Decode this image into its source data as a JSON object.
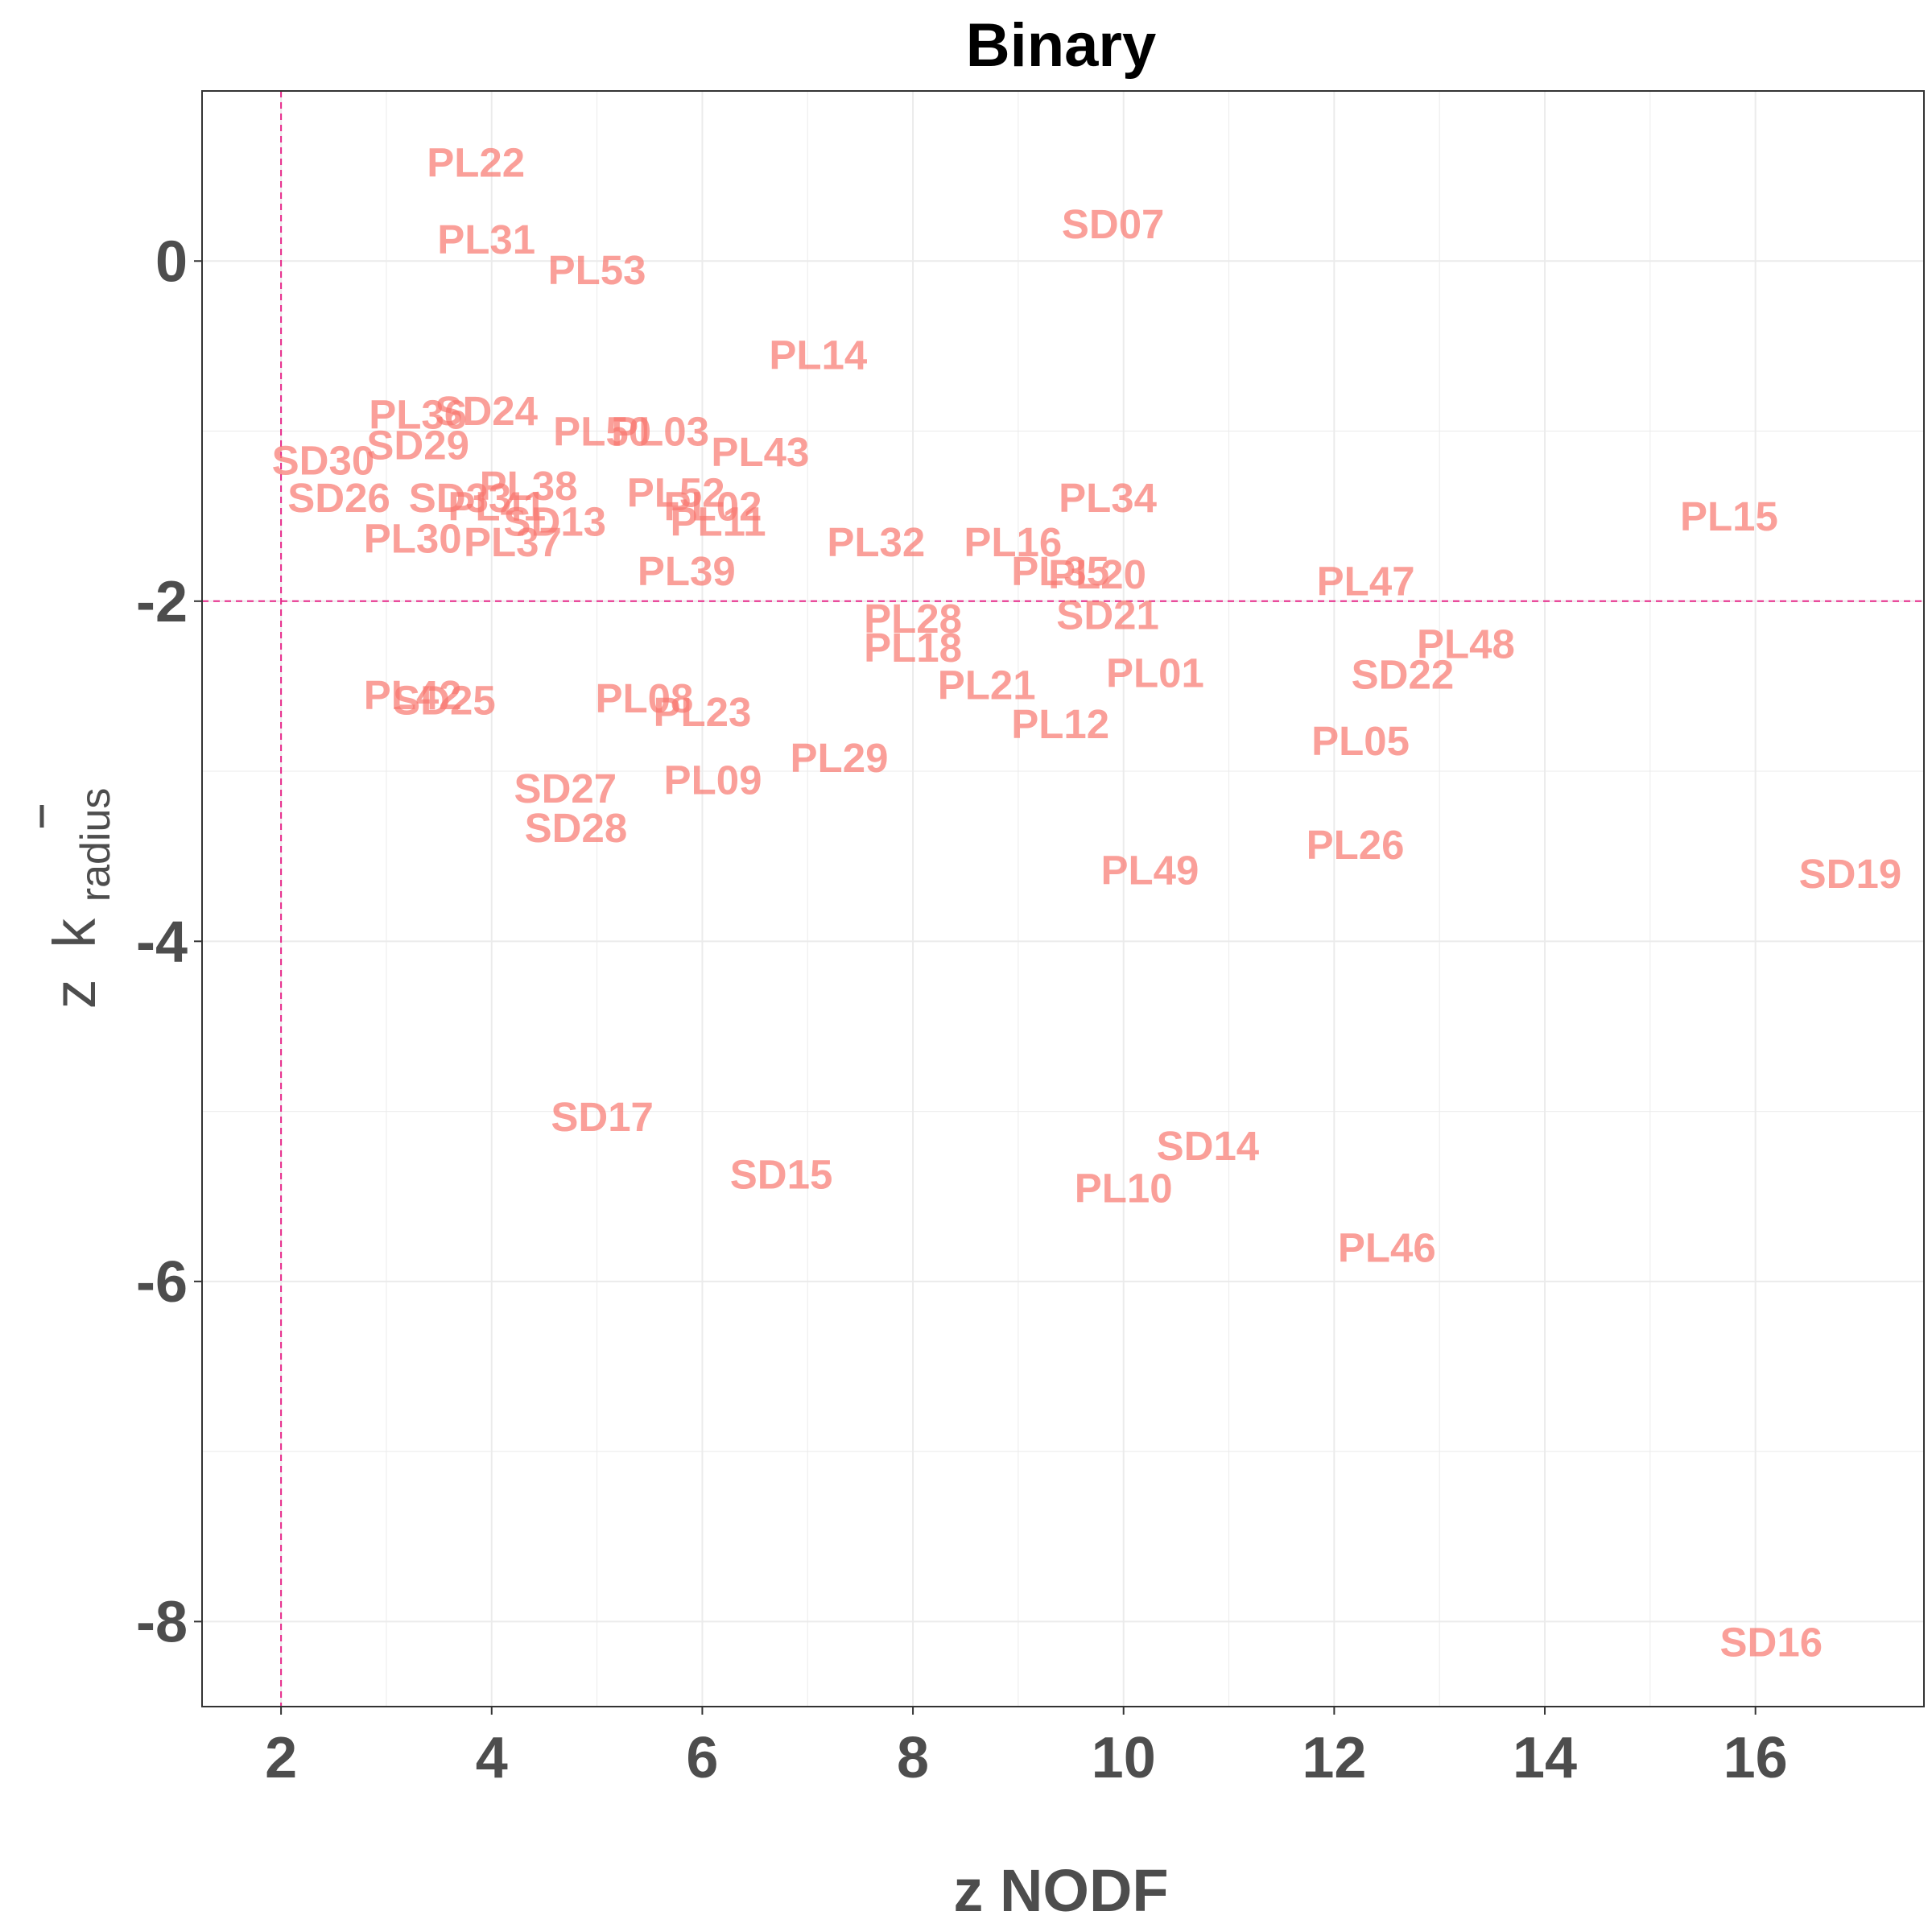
{
  "chart_data": {
    "type": "scatter",
    "title": "Binary",
    "xlabel": "z NODF",
    "ylabel": {
      "prefix": "z",
      "symbol": "k",
      "subscript": "radius"
    },
    "xlim": [
      1.25,
      17.6
    ],
    "ylim": [
      -8.5,
      1.0
    ],
    "x_ticks": [
      2,
      4,
      6,
      8,
      10,
      12,
      14,
      16
    ],
    "y_ticks": [
      0,
      -2,
      -4,
      -6,
      -8
    ],
    "grid": true,
    "reference_lines": {
      "x": 2,
      "y": -2
    },
    "colors": {
      "labels": "#f8766d",
      "reference_lines": "#e7298a",
      "grid": "#ebebeb",
      "panel_border": "#333333"
    },
    "points": [
      {
        "label": "PL22",
        "x": 3.85,
        "y": 0.58
      },
      {
        "label": "SD07",
        "x": 9.9,
        "y": 0.22
      },
      {
        "label": "PL31",
        "x": 3.95,
        "y": 0.13
      },
      {
        "label": "PL53",
        "x": 5.0,
        "y": -0.05
      },
      {
        "label": "PL14",
        "x": 7.1,
        "y": -0.55
      },
      {
        "label": "PL36",
        "x": 3.3,
        "y": -0.9
      },
      {
        "label": "SD24",
        "x": 3.95,
        "y": -0.88
      },
      {
        "label": "PL50",
        "x": 5.05,
        "y": -1.0
      },
      {
        "label": "PL03",
        "x": 5.6,
        "y": -1.0
      },
      {
        "label": "SD29",
        "x": 3.3,
        "y": -1.08
      },
      {
        "label": "PL43",
        "x": 6.55,
        "y": -1.12
      },
      {
        "label": "SD30",
        "x": 2.4,
        "y": -1.17
      },
      {
        "label": "PL38",
        "x": 4.35,
        "y": -1.32
      },
      {
        "label": "SD26",
        "x": 2.55,
        "y": -1.39
      },
      {
        "label": "SD33",
        "x": 3.7,
        "y": -1.39
      },
      {
        "label": "PL34",
        "x": 9.85,
        "y": -1.39
      },
      {
        "label": "PL52",
        "x": 5.75,
        "y": -1.36
      },
      {
        "label": "PL41",
        "x": 4.05,
        "y": -1.44
      },
      {
        "label": "PL02",
        "x": 6.1,
        "y": -1.44
      },
      {
        "label": "PL15",
        "x": 15.75,
        "y": -1.5
      },
      {
        "label": "SD13",
        "x": 4.6,
        "y": -1.53
      },
      {
        "label": "PL11",
        "x": 6.15,
        "y": -1.53
      },
      {
        "label": "PL30",
        "x": 3.25,
        "y": -1.63
      },
      {
        "label": "PL37",
        "x": 4.2,
        "y": -1.65
      },
      {
        "label": "PL32",
        "x": 7.65,
        "y": -1.65
      },
      {
        "label": "PL16",
        "x": 8.95,
        "y": -1.65
      },
      {
        "label": "PL39",
        "x": 5.85,
        "y": -1.82
      },
      {
        "label": "PL35",
        "x": 9.4,
        "y": -1.82
      },
      {
        "label": "PL20",
        "x": 9.75,
        "y": -1.84
      },
      {
        "label": "PL47",
        "x": 12.3,
        "y": -1.88
      },
      {
        "label": "SD21",
        "x": 9.85,
        "y": -2.08
      },
      {
        "label": "PL28",
        "x": 8.0,
        "y": -2.1
      },
      {
        "label": "PL48",
        "x": 13.25,
        "y": -2.25
      },
      {
        "label": "PL18",
        "x": 8.0,
        "y": -2.27
      },
      {
        "label": "PL01",
        "x": 10.3,
        "y": -2.42
      },
      {
        "label": "SD22",
        "x": 12.65,
        "y": -2.43
      },
      {
        "label": "PL21",
        "x": 8.7,
        "y": -2.49
      },
      {
        "label": "PL42",
        "x": 3.25,
        "y": -2.55
      },
      {
        "label": "SD25",
        "x": 3.55,
        "y": -2.58
      },
      {
        "label": "PL08",
        "x": 5.45,
        "y": -2.57
      },
      {
        "label": "PL23",
        "x": 6.0,
        "y": -2.65
      },
      {
        "label": "PL12",
        "x": 9.4,
        "y": -2.72
      },
      {
        "label": "PL05",
        "x": 12.25,
        "y": -2.82
      },
      {
        "label": "PL29",
        "x": 7.3,
        "y": -2.92
      },
      {
        "label": "PL09",
        "x": 6.1,
        "y": -3.05
      },
      {
        "label": "SD27",
        "x": 4.7,
        "y": -3.1
      },
      {
        "label": "SD28",
        "x": 4.8,
        "y": -3.33
      },
      {
        "label": "PL26",
        "x": 12.2,
        "y": -3.43
      },
      {
        "label": "PL49",
        "x": 10.25,
        "y": -3.58
      },
      {
        "label": "SD19",
        "x": 16.9,
        "y": -3.6
      },
      {
        "label": "SD17",
        "x": 5.05,
        "y": -5.03
      },
      {
        "label": "SD14",
        "x": 10.8,
        "y": -5.2
      },
      {
        "label": "SD15",
        "x": 6.75,
        "y": -5.37
      },
      {
        "label": "PL10",
        "x": 10.0,
        "y": -5.45
      },
      {
        "label": "PL46",
        "x": 12.5,
        "y": -5.8
      },
      {
        "label": "SD16",
        "x": 16.15,
        "y": -8.12
      }
    ]
  }
}
